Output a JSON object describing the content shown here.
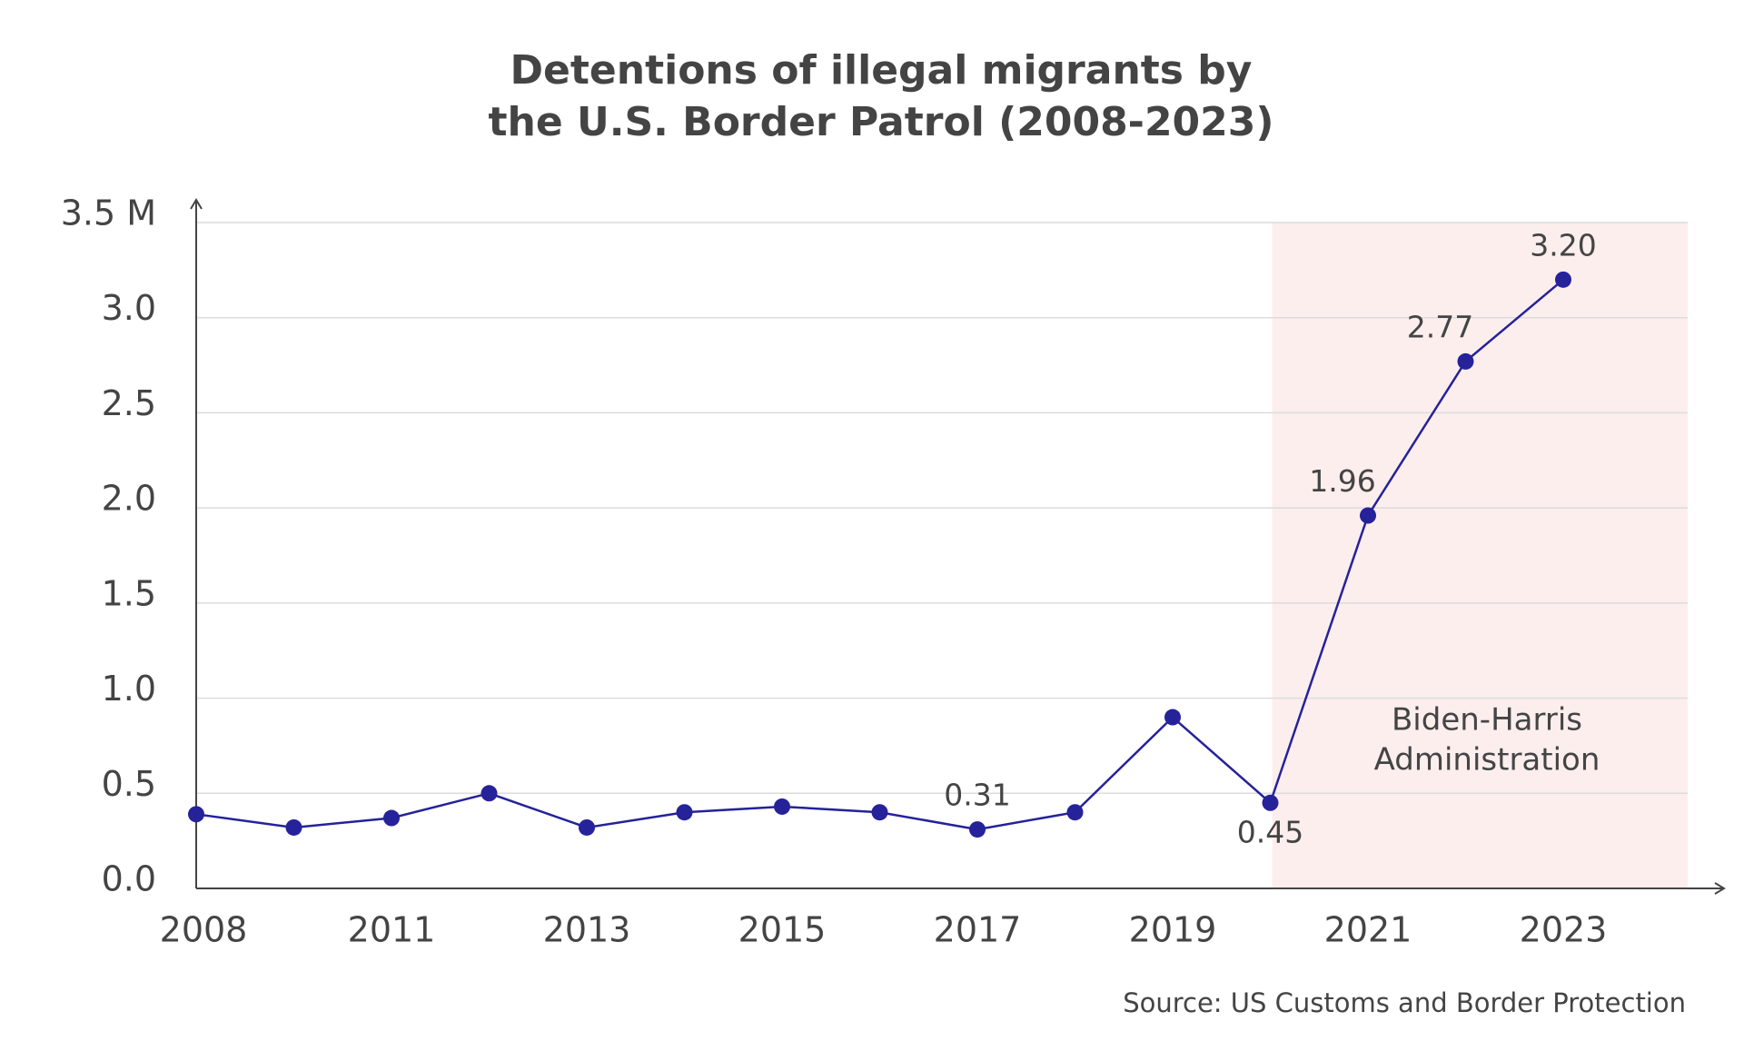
{
  "chart_data": {
    "type": "line",
    "title": [
      "Detentions of illegal migrants by",
      "the U.S. Border Patrol (2008-2023)"
    ],
    "categories": [
      "2008",
      null,
      "2011",
      null,
      "2013",
      null,
      "2015",
      null,
      "2017",
      null,
      "2019",
      null,
      "2021",
      null,
      "2023"
    ],
    "series": [
      {
        "name": "Detentions",
        "color": "#25229a",
        "values": [
          0.39,
          0.32,
          0.37,
          0.5,
          0.32,
          0.4,
          0.43,
          0.4,
          0.31,
          0.4,
          0.9,
          0.45,
          1.96,
          2.77,
          3.2
        ],
        "value_labels": [
          null,
          null,
          null,
          null,
          null,
          null,
          null,
          null,
          "0.31",
          null,
          null,
          "0.45",
          "1.96",
          "2.77",
          "3.20"
        ]
      }
    ],
    "ylim": [
      0,
      3.5
    ],
    "yticks": [
      {
        "value": 0,
        "label": "0.0"
      },
      0.5,
      {
        "value": 1,
        "label": "1.0"
      },
      1.5,
      {
        "value": 2,
        "label": "2.0"
      },
      2.5,
      {
        "value": 3,
        "label": "3.0"
      },
      {
        "value": 3.5,
        "label": "3.5 M"
      }
    ],
    "grid": true,
    "annotation": [
      "Biden-Harris",
      "Administration"
    ],
    "highlight_color": "#fdeeee",
    "source": "Source: US Customs and Border Protection"
  }
}
